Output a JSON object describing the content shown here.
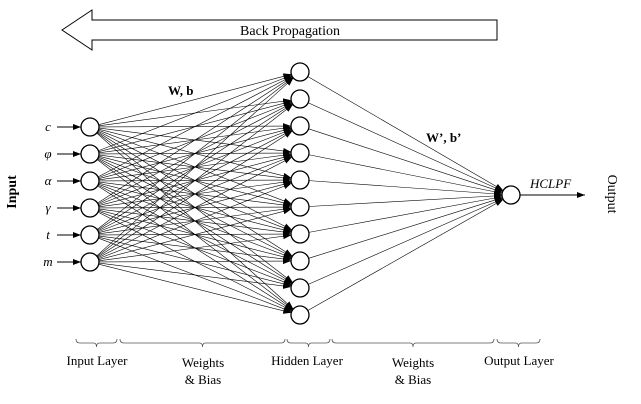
{
  "title_arrow": {
    "label": "Back Propagation",
    "direction": "left"
  },
  "inputs": [
    "c",
    "φ",
    "α",
    "γ",
    "t",
    "m"
  ],
  "input_axis_label": "Input",
  "output_axis_label": "Output",
  "hidden_node_count": 10,
  "output_label": "HCLPF",
  "weights_first": "W, b",
  "weights_second": "W’, b’",
  "bottom_labels": {
    "input_layer": "Input Layer",
    "weights1_line1": "Weights",
    "weights1_line2": "& Bias",
    "hidden_layer": "Hidden Layer",
    "weights2_line1": "Weights",
    "weights2_line2": "& Bias",
    "output_layer": "Output Layer"
  }
}
